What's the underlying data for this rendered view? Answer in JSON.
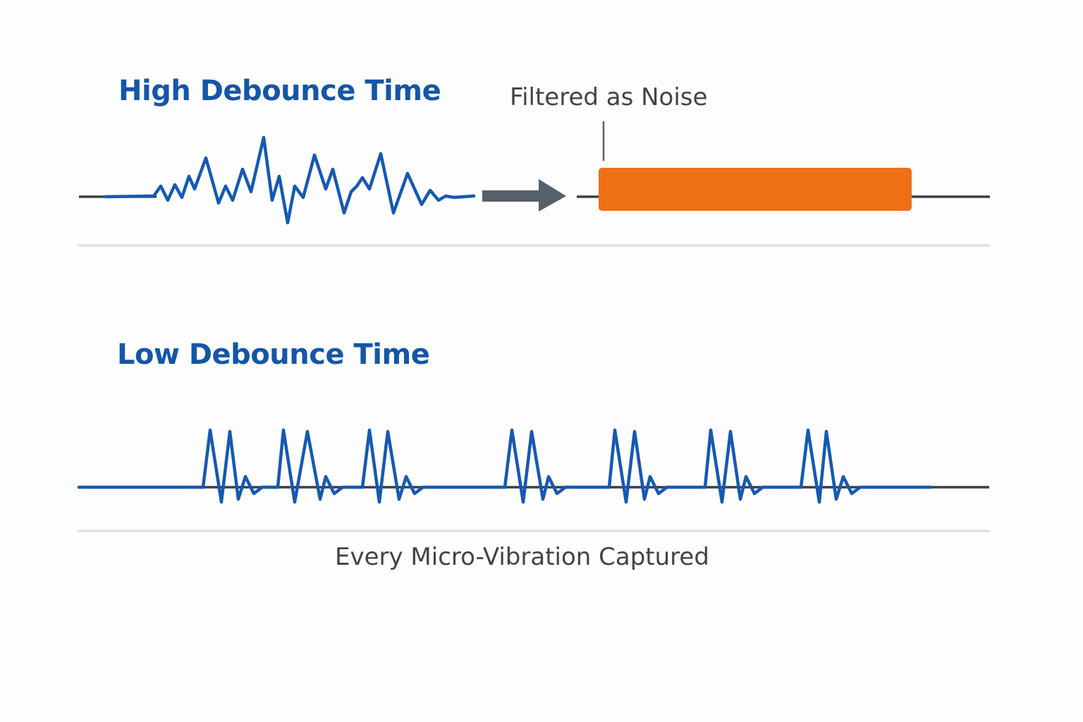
{
  "high_section": {
    "title": "High Debounce Time",
    "label": "Filtered as Noise"
  },
  "low_section": {
    "title": "Low Debounce Time",
    "caption": "Every Micro-Vibration Captured"
  },
  "icons": [
    "right-arrow-icon"
  ],
  "colors": {
    "title": "#1456a8",
    "signal": "#1559b3",
    "baseline": "#3a3f46",
    "filter_block": "#ee7015",
    "arrow": "#56606b",
    "label_text": "#3e444b",
    "divider": "#dcdce0"
  }
}
